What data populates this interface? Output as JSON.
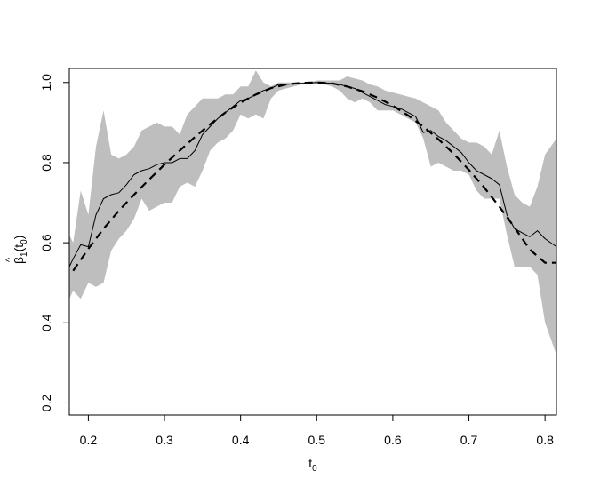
{
  "chart_data": {
    "type": "line",
    "xlabel": "t",
    "xlabel_sub": "0",
    "ylabel_hat": "^",
    "ylabel_beta": "β",
    "ylabel_sub1": "1",
    "ylabel_open": "(t",
    "ylabel_sub0": "0",
    "ylabel_close": ")",
    "xlim": [
      0.175,
      0.815
    ],
    "ylim": [
      0.17,
      1.035
    ],
    "x_ticks": [
      0.2,
      0.3,
      0.4,
      0.5,
      0.6,
      0.7,
      0.8
    ],
    "x_tick_labels": [
      "0.2",
      "0.3",
      "0.4",
      "0.5",
      "0.6",
      "0.7",
      "0.8"
    ],
    "y_ticks": [
      0.2,
      0.4,
      0.6,
      0.8,
      1.0
    ],
    "y_tick_labels": [
      "0.2",
      "0.4",
      "0.6",
      "0.8",
      "1.0"
    ],
    "grid": false,
    "colors": {
      "band": "#bebebe",
      "line": "#000000"
    },
    "band": {
      "x": [
        0.175,
        0.18,
        0.19,
        0.2,
        0.21,
        0.22,
        0.23,
        0.24,
        0.25,
        0.26,
        0.27,
        0.28,
        0.29,
        0.3,
        0.31,
        0.32,
        0.33,
        0.34,
        0.35,
        0.36,
        0.37,
        0.38,
        0.39,
        0.4,
        0.41,
        0.42,
        0.43,
        0.44,
        0.45,
        0.46,
        0.47,
        0.48,
        0.49,
        0.5,
        0.51,
        0.52,
        0.53,
        0.54,
        0.55,
        0.56,
        0.57,
        0.58,
        0.59,
        0.6,
        0.61,
        0.62,
        0.63,
        0.64,
        0.65,
        0.66,
        0.67,
        0.68,
        0.69,
        0.7,
        0.71,
        0.72,
        0.73,
        0.74,
        0.75,
        0.76,
        0.77,
        0.78,
        0.79,
        0.8,
        0.815
      ],
      "upper": [
        0.62,
        0.6,
        0.73,
        0.67,
        0.84,
        0.93,
        0.82,
        0.81,
        0.82,
        0.84,
        0.88,
        0.89,
        0.9,
        0.89,
        0.89,
        0.87,
        0.92,
        0.94,
        0.96,
        0.96,
        0.96,
        0.97,
        0.97,
        0.99,
        0.99,
        1.03,
        1.0,
        0.99,
        1.0,
        1.0,
        1.0,
        1.0,
        1.0,
        1.005,
        1.005,
        1.005,
        1.005,
        1.015,
        1.01,
        1.005,
        0.995,
        0.99,
        0.98,
        0.975,
        0.97,
        0.965,
        0.96,
        0.95,
        0.94,
        0.93,
        0.9,
        0.88,
        0.86,
        0.85,
        0.85,
        0.84,
        0.82,
        0.88,
        0.79,
        0.72,
        0.7,
        0.69,
        0.74,
        0.82,
        0.86
      ],
      "lower": [
        0.46,
        0.48,
        0.46,
        0.5,
        0.49,
        0.5,
        0.58,
        0.61,
        0.63,
        0.66,
        0.71,
        0.68,
        0.69,
        0.7,
        0.7,
        0.74,
        0.75,
        0.74,
        0.78,
        0.83,
        0.85,
        0.86,
        0.88,
        0.92,
        0.91,
        0.92,
        0.91,
        0.96,
        0.98,
        0.985,
        0.99,
        0.995,
        0.995,
        0.995,
        0.995,
        0.99,
        0.98,
        0.96,
        0.95,
        0.96,
        0.95,
        0.93,
        0.93,
        0.93,
        0.92,
        0.91,
        0.9,
        0.86,
        0.79,
        0.8,
        0.79,
        0.78,
        0.78,
        0.77,
        0.73,
        0.71,
        0.71,
        0.71,
        0.62,
        0.54,
        0.54,
        0.54,
        0.52,
        0.4,
        0.32
      ]
    },
    "series": [
      {
        "style": "solid",
        "x": [
          0.175,
          0.18,
          0.19,
          0.2,
          0.21,
          0.22,
          0.23,
          0.24,
          0.25,
          0.26,
          0.27,
          0.28,
          0.29,
          0.3,
          0.31,
          0.32,
          0.33,
          0.34,
          0.35,
          0.36,
          0.37,
          0.38,
          0.39,
          0.4,
          0.41,
          0.42,
          0.43,
          0.44,
          0.45,
          0.46,
          0.47,
          0.48,
          0.49,
          0.5,
          0.51,
          0.52,
          0.53,
          0.54,
          0.55,
          0.56,
          0.57,
          0.58,
          0.59,
          0.6,
          0.61,
          0.62,
          0.63,
          0.64,
          0.65,
          0.66,
          0.67,
          0.68,
          0.69,
          0.7,
          0.71,
          0.72,
          0.73,
          0.74,
          0.75,
          0.76,
          0.77,
          0.78,
          0.79,
          0.8,
          0.815
        ],
        "y": [
          0.54,
          0.56,
          0.595,
          0.59,
          0.67,
          0.71,
          0.72,
          0.725,
          0.745,
          0.77,
          0.78,
          0.785,
          0.795,
          0.8,
          0.8,
          0.81,
          0.81,
          0.83,
          0.87,
          0.89,
          0.91,
          0.925,
          0.94,
          0.955,
          0.96,
          0.97,
          0.98,
          0.985,
          0.995,
          0.995,
          0.997,
          0.998,
          0.999,
          1.0,
          0.999,
          0.998,
          0.995,
          0.99,
          0.985,
          0.975,
          0.965,
          0.955,
          0.945,
          0.94,
          0.935,
          0.925,
          0.915,
          0.875,
          0.88,
          0.865,
          0.855,
          0.84,
          0.825,
          0.8,
          0.78,
          0.77,
          0.76,
          0.745,
          0.67,
          0.635,
          0.625,
          0.615,
          0.63,
          0.61,
          0.59
        ]
      },
      {
        "style": "dashed",
        "x": [
          0.18,
          0.2,
          0.22,
          0.24,
          0.26,
          0.28,
          0.3,
          0.32,
          0.34,
          0.36,
          0.38,
          0.4,
          0.42,
          0.44,
          0.46,
          0.48,
          0.5,
          0.52,
          0.54,
          0.56,
          0.58,
          0.6,
          0.62,
          0.64,
          0.66,
          0.68,
          0.7,
          0.72,
          0.74,
          0.76,
          0.78,
          0.8,
          0.815
        ],
        "y": [
          0.53,
          0.585,
          0.635,
          0.68,
          0.72,
          0.758,
          0.795,
          0.83,
          0.864,
          0.896,
          0.925,
          0.95,
          0.97,
          0.986,
          0.995,
          0.999,
          1.0,
          0.998,
          0.99,
          0.978,
          0.962,
          0.942,
          0.918,
          0.89,
          0.858,
          0.822,
          0.782,
          0.738,
          0.69,
          0.638,
          0.583,
          0.55,
          0.55
        ]
      }
    ]
  }
}
